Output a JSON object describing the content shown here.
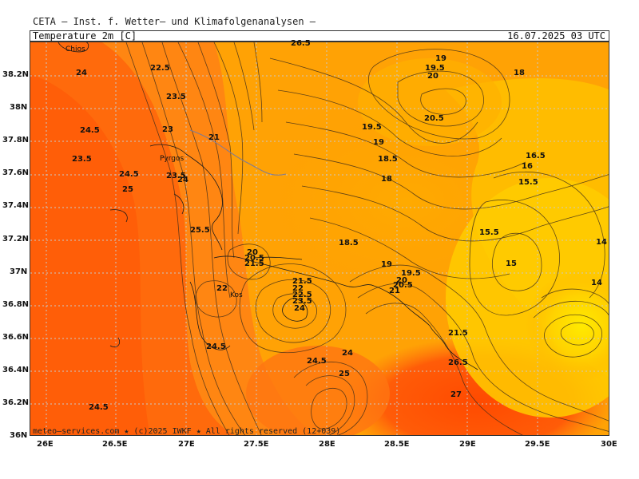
{
  "header": {
    "agency_line": "CETA — Inst. f. Wetter— und Klimafolgenanalysen —"
  },
  "title_bar": {
    "parameter": "Temperature 2m [C]",
    "valid_time": "16.07.2025 03 UTC"
  },
  "credit": "meteo—services.com ★ (c)2025 IWKF ★ All rights reserved (12+039)",
  "axes": {
    "lat_labels": [
      "38.2N",
      "38N",
      "37.8N",
      "37.6N",
      "37.4N",
      "37.2N",
      "37N",
      "36.8N",
      "36.6N",
      "36.4N",
      "36.2N",
      "36N"
    ],
    "lon_labels": [
      "26E",
      "26.5E",
      "27E",
      "27.5E",
      "28E",
      "28.5E",
      "29E",
      "29.5E",
      "30E"
    ]
  },
  "place_labels": [
    "Chios",
    "Pyrgos",
    "Kos"
  ],
  "contour_labels": [
    "26.5",
    "24",
    "22.5",
    "23.5",
    "24.5",
    "23",
    "21",
    "23.5",
    "24.5",
    "23.5",
    "24",
    "25",
    "25.5",
    "19",
    "19.5",
    "20",
    "18",
    "20.5",
    "19.5",
    "19",
    "18.5",
    "18",
    "16.5",
    "16",
    "15.5",
    "15.5",
    "18.5",
    "14",
    "15",
    "14",
    "20",
    "20.5",
    "21.5",
    "22",
    "21.5",
    "22",
    "22.5",
    "23.5",
    "24",
    "19",
    "19.5",
    "20",
    "20.5",
    "21",
    "24.5",
    "24",
    "25",
    "24.5",
    "26.5",
    "27",
    "24.5",
    "21.5"
  ],
  "colors": {
    "hot": "#ff5a0a",
    "warm": "#ff8c14",
    "mild": "#ffa500",
    "cool": "#ffc400",
    "coolest": "#ffe600",
    "contour": "#3a2a1a",
    "grid": "#c8c8c8"
  }
}
